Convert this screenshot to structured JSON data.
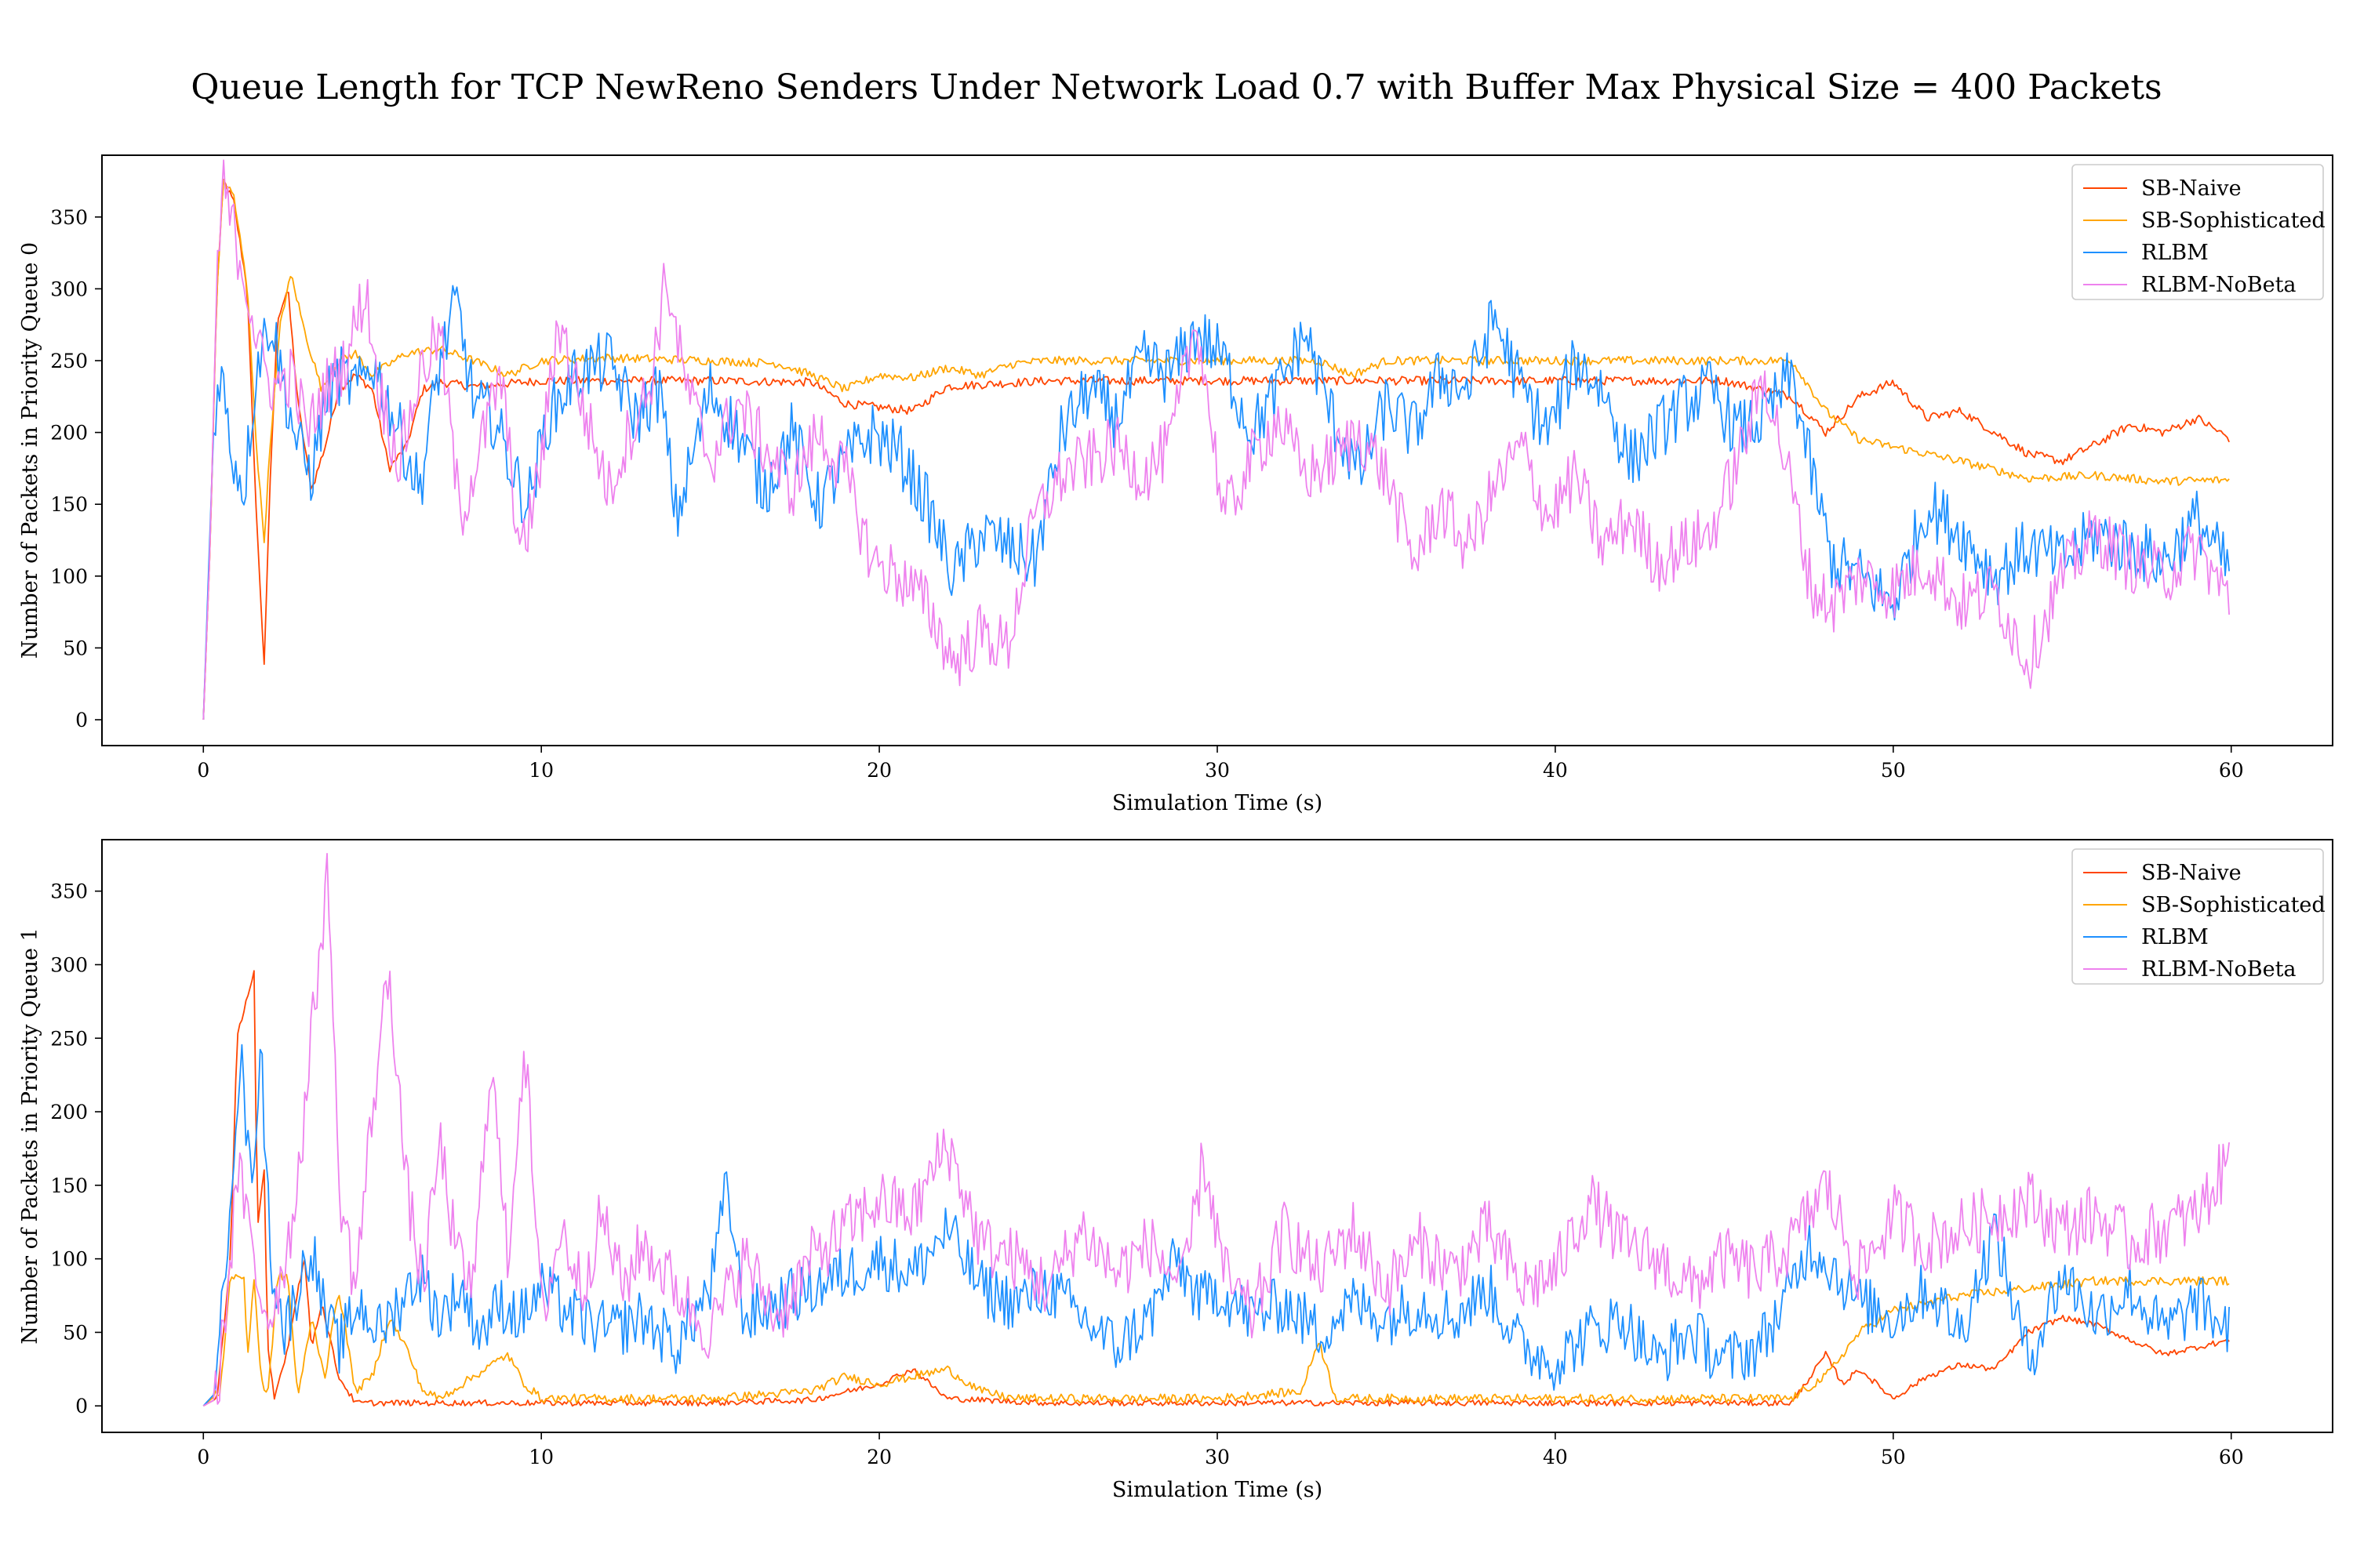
{
  "title": "Queue Length for TCP NewReno Senders Under Network Load 0.7 with Buffer Max Physical Size = 400 Packets",
  "colors": {
    "SB-Naive": "#ff4500",
    "SB-Sophisticated": "#ffa500",
    "RLBM": "#1e90ff",
    "RLBM-NoBeta": "#ee82ee"
  },
  "chart_data": [
    {
      "type": "line",
      "xlabel": "Simulation Time (s)",
      "ylabel": "Number of Packets in Priority Queue 0",
      "xlim": [
        -3,
        63
      ],
      "ylim": [
        -18,
        393
      ],
      "xticks": [
        0,
        10,
        20,
        30,
        40,
        50,
        60
      ],
      "yticks": [
        0,
        50,
        100,
        150,
        200,
        250,
        300,
        350
      ],
      "grid": false,
      "legend_position": "top-right",
      "series": [
        {
          "name": "SB-Naive",
          "color": "#ff4500",
          "noise": 3,
          "x": [
            0,
            0.2,
            0.4,
            0.6,
            0.9,
            1.3,
            1.5,
            1.7,
            1.8,
            2.0,
            2.2,
            2.5,
            2.8,
            3.2,
            3.6,
            4.0,
            4.5,
            5.0,
            5.5,
            6.0,
            6.5,
            7.0,
            8,
            10,
            15,
            18,
            19,
            21,
            22,
            25,
            35,
            45,
            47,
            48,
            49,
            50,
            51,
            52,
            53,
            54,
            55,
            56,
            57,
            58,
            59,
            60
          ],
          "y": [
            0,
            120,
            300,
            375,
            360,
            300,
            180,
            80,
            40,
            180,
            280,
            300,
            220,
            160,
            190,
            230,
            240,
            230,
            175,
            190,
            230,
            235,
            232,
            236,
            236,
            235,
            220,
            215,
            232,
            236,
            236,
            236,
            225,
            200,
            225,
            235,
            210,
            215,
            200,
            185,
            180,
            192,
            205,
            200,
            210,
            195
          ]
        },
        {
          "name": "SB-Sophisticated",
          "color": "#ffa500",
          "noise": 3,
          "x": [
            0,
            0.2,
            0.4,
            0.6,
            0.9,
            1.3,
            1.6,
            1.8,
            2.0,
            2.3,
            2.6,
            3.0,
            3.5,
            4.0,
            4.5,
            5.0,
            6.0,
            7.0,
            8.0,
            9.0,
            10,
            12,
            15,
            17,
            18,
            19,
            20,
            21,
            22,
            23,
            24,
            25,
            30,
            33,
            34,
            35,
            40,
            45,
            47,
            48,
            49,
            50,
            52,
            54,
            56,
            58,
            60
          ],
          "y": [
            0,
            120,
            300,
            375,
            365,
            300,
            180,
            125,
            200,
            280,
            310,
            270,
            230,
            250,
            255,
            240,
            255,
            258,
            250,
            240,
            250,
            252,
            250,
            248,
            240,
            230,
            240,
            238,
            245,
            240,
            248,
            250,
            250,
            250,
            240,
            250,
            250,
            250,
            250,
            215,
            195,
            190,
            180,
            168,
            170,
            166,
            167
          ]
        },
        {
          "name": "RLBM",
          "color": "#1e90ff",
          "noise": 22,
          "x": [
            0,
            0.3,
            0.5,
            0.8,
            1.2,
            1.6,
            2.0,
            2.4,
            2.8,
            3.2,
            3.6,
            4.0,
            4.6,
            5.0,
            5.8,
            6.4,
            7.0,
            7.5,
            8.0,
            8.6,
            9.2,
            9.6,
            10.2,
            11,
            12,
            12.8,
            13.5,
            14,
            15,
            15.8,
            16.6,
            17.4,
            18.2,
            19,
            19.8,
            20.6,
            21.4,
            22.2,
            23,
            23.8,
            24.6,
            25.4,
            26.2,
            27,
            27.8,
            28.6,
            29.4,
            30.2,
            31,
            31.8,
            32.6,
            33.4,
            34.2,
            35,
            35.8,
            36.6,
            37.4,
            38.2,
            39,
            39.8,
            40.6,
            41.4,
            42.2,
            43,
            43.8,
            44.6,
            45.4,
            46.2,
            47,
            47.6,
            48.2,
            49,
            50,
            51,
            52,
            53,
            54,
            55,
            56,
            57,
            58,
            59,
            60
          ],
          "y": [
            0,
            200,
            248,
            190,
            160,
            250,
            280,
            230,
            190,
            170,
            220,
            240,
            230,
            250,
            200,
            160,
            250,
            290,
            220,
            210,
            170,
            150,
            210,
            240,
            250,
            210,
            230,
            140,
            230,
            200,
            160,
            200,
            150,
            180,
            200,
            185,
            150,
            100,
            130,
            120,
            110,
            200,
            230,
            210,
            250,
            240,
            270,
            250,
            200,
            230,
            270,
            210,
            170,
            220,
            200,
            240,
            230,
            280,
            230,
            200,
            250,
            230,
            180,
            200,
            220,
            230,
            200,
            210,
            240,
            170,
            110,
            100,
            80,
            150,
            130,
            100,
            120,
            110,
            130,
            120,
            110,
            140,
            100
          ]
        },
        {
          "name": "RLBM-NoBeta",
          "color": "#ee82ee",
          "noise": 22,
          "x": [
            0,
            0.2,
            0.4,
            0.6,
            0.9,
            1.3,
            1.7,
            2.1,
            2.6,
            3.1,
            3.6,
            4.2,
            4.8,
            5.2,
            5.8,
            6.4,
            7.0,
            7.6,
            8.2,
            8.8,
            9.4,
            10.0,
            10.5,
            11.2,
            12,
            12.6,
            13.2,
            13.7,
            14.2,
            15,
            15.8,
            16.6,
            17.4,
            18.2,
            19,
            19.8,
            20.6,
            21.4,
            22.2,
            23,
            23.8,
            24.6,
            25.4,
            26.2,
            27,
            27.8,
            28.6,
            29.4,
            30.2,
            31,
            31.8,
            32.6,
            33.4,
            34.2,
            35,
            35.8,
            36.6,
            37.4,
            38.2,
            39,
            39.8,
            40.6,
            41.4,
            42.2,
            43,
            43.8,
            44.6,
            45.4,
            46.2,
            47,
            47.6,
            48.2,
            49,
            50,
            51,
            52,
            53,
            54,
            55,
            56,
            57,
            58,
            59,
            60
          ],
          "y": [
            0,
            120,
            310,
            370,
            340,
            300,
            250,
            230,
            240,
            200,
            230,
            250,
            300,
            230,
            180,
            240,
            270,
            140,
            190,
            240,
            110,
            180,
            280,
            220,
            160,
            200,
            230,
            310,
            240,
            180,
            220,
            190,
            160,
            200,
            170,
            110,
            100,
            80,
            40,
            60,
            50,
            140,
            170,
            180,
            190,
            170,
            190,
            280,
            140,
            180,
            210,
            170,
            180,
            200,
            170,
            110,
            150,
            120,
            160,
            190,
            140,
            170,
            120,
            140,
            110,
            120,
            130,
            180,
            240,
            160,
            90,
            80,
            100,
            90,
            110,
            80,
            90,
            40,
            100,
            130,
            110,
            100,
            120,
            80
          ]
        }
      ]
    },
    {
      "type": "line",
      "xlabel": "Simulation Time (s)",
      "ylabel": "Number of Packets in Priority Queue 1",
      "xlim": [
        -3,
        63
      ],
      "ylim": [
        -18,
        385
      ],
      "xticks": [
        0,
        10,
        20,
        30,
        40,
        50,
        60
      ],
      "yticks": [
        0,
        50,
        100,
        150,
        200,
        250,
        300,
        350
      ],
      "grid": false,
      "legend_position": "top-right",
      "series": [
        {
          "name": "SB-Naive",
          "color": "#ff4500",
          "noise": 2,
          "x": [
            0,
            0.4,
            0.8,
            1.0,
            1.2,
            1.5,
            1.6,
            1.8,
            1.9,
            2.1,
            2.5,
            2.8,
            3.0,
            3.2,
            3.5,
            4.0,
            4.5,
            5,
            6,
            7,
            10,
            15,
            18,
            20,
            21,
            22,
            25,
            30,
            35,
            40,
            46,
            47,
            48,
            48.5,
            49,
            50,
            51,
            52,
            53,
            54,
            55,
            56,
            57,
            58,
            59,
            60
          ],
          "y": [
            0,
            5,
            100,
            250,
            270,
            295,
            120,
            160,
            40,
            5,
            40,
            80,
            100,
            40,
            70,
            20,
            2,
            2,
            2,
            2,
            2,
            2,
            4,
            15,
            25,
            5,
            2,
            2,
            2,
            2,
            2,
            2,
            35,
            15,
            25,
            5,
            20,
            28,
            25,
            50,
            60,
            55,
            45,
            35,
            40,
            45
          ]
        },
        {
          "name": "SB-Sophisticated",
          "color": "#ffa500",
          "noise": 3,
          "x": [
            0,
            0.5,
            0.8,
            1.2,
            1.3,
            1.5,
            1.7,
            1.9,
            2.2,
            2.5,
            2.8,
            3.2,
            3.6,
            4.0,
            4.5,
            5.0,
            5.5,
            6.0,
            6.5,
            7.0,
            8.0,
            9.0,
            9.5,
            10,
            15,
            18,
            19,
            20,
            21,
            22,
            23,
            24,
            25,
            30,
            32.5,
            33,
            33.5,
            35,
            40,
            46,
            47,
            48,
            49,
            50,
            52,
            54,
            56,
            58,
            60
          ],
          "y": [
            0,
            10,
            88,
            88,
            30,
            88,
            20,
            5,
            88,
            88,
            5,
            60,
            20,
            80,
            10,
            20,
            60,
            40,
            10,
            5,
            20,
            35,
            15,
            5,
            5,
            10,
            20,
            15,
            20,
            25,
            10,
            5,
            5,
            5,
            10,
            45,
            5,
            5,
            5,
            5,
            5,
            20,
            50,
            65,
            75,
            80,
            85,
            85,
            85
          ]
        },
        {
          "name": "RLBM",
          "color": "#1e90ff",
          "noise": 20,
          "x": [
            0,
            0.4,
            0.8,
            1.1,
            1.4,
            1.7,
            2.0,
            2.4,
            2.8,
            3.2,
            3.6,
            4.0,
            4.6,
            5.2,
            5.8,
            6.4,
            7.0,
            7.6,
            8.2,
            8.8,
            9.4,
            10,
            11,
            12,
            13,
            14,
            15,
            15.5,
            16,
            17,
            18,
            19,
            20,
            21,
            22,
            23,
            24,
            25,
            26,
            27,
            28,
            28.8,
            29.5,
            30,
            31,
            32,
            33,
            34,
            35,
            36,
            37,
            38,
            39,
            40,
            41,
            42,
            43,
            44,
            45,
            46,
            46.8,
            47.5,
            48,
            49,
            50,
            51,
            52,
            53,
            54,
            55,
            56,
            57,
            58,
            59,
            60
          ],
          "y": [
            0,
            10,
            150,
            240,
            150,
            240,
            100,
            50,
            80,
            110,
            60,
            40,
            70,
            50,
            70,
            90,
            60,
            80,
            50,
            70,
            60,
            80,
            60,
            50,
            60,
            40,
            80,
            150,
            60,
            70,
            80,
            90,
            100,
            90,
            120,
            80,
            70,
            80,
            60,
            40,
            60,
            100,
            70,
            80,
            60,
            70,
            50,
            70,
            60,
            70,
            60,
            80,
            40,
            30,
            50,
            60,
            30,
            50,
            30,
            40,
            70,
            110,
            100,
            70,
            60,
            80,
            50,
            120,
            30,
            90,
            60,
            80,
            50,
            70,
            50
          ]
        },
        {
          "name": "RLBM-NoBeta",
          "color": "#ee82ee",
          "noise": 22,
          "x": [
            0,
            0.4,
            0.8,
            1.0,
            1.2,
            1.6,
            2.0,
            2.6,
            3.0,
            3.4,
            3.7,
            4.0,
            4.5,
            5.0,
            5.5,
            6.0,
            6.5,
            7.0,
            7.5,
            8.0,
            8.5,
            9.0,
            9.5,
            10,
            10.6,
            11.2,
            11.8,
            12.4,
            13,
            14,
            15,
            16,
            17,
            18,
            19,
            20,
            21,
            22,
            23,
            24,
            25,
            26,
            27,
            28,
            29,
            29.6,
            30.2,
            31,
            32,
            33,
            34,
            35,
            36,
            37,
            38,
            39,
            40,
            41,
            42,
            43,
            44,
            45,
            46,
            47,
            48,
            49,
            50,
            51,
            52,
            53,
            54,
            55,
            56,
            57,
            58,
            59,
            60
          ],
          "y": [
            0,
            5,
            100,
            160,
            140,
            80,
            60,
            120,
            200,
            300,
            365,
            150,
            80,
            200,
            300,
            150,
            80,
            180,
            100,
            80,
            240,
            100,
            250,
            60,
            120,
            80,
            130,
            80,
            110,
            80,
            50,
            100,
            60,
            100,
            120,
            140,
            130,
            180,
            110,
            100,
            80,
            120,
            90,
            110,
            80,
            170,
            90,
            60,
            120,
            90,
            120,
            80,
            110,
            90,
            120,
            80,
            90,
            140,
            110,
            100,
            80,
            100,
            90,
            110,
            150,
            90,
            130,
            110,
            120,
            130,
            140,
            120,
            130,
            110,
            120,
            130,
            170
          ]
        }
      ]
    }
  ]
}
